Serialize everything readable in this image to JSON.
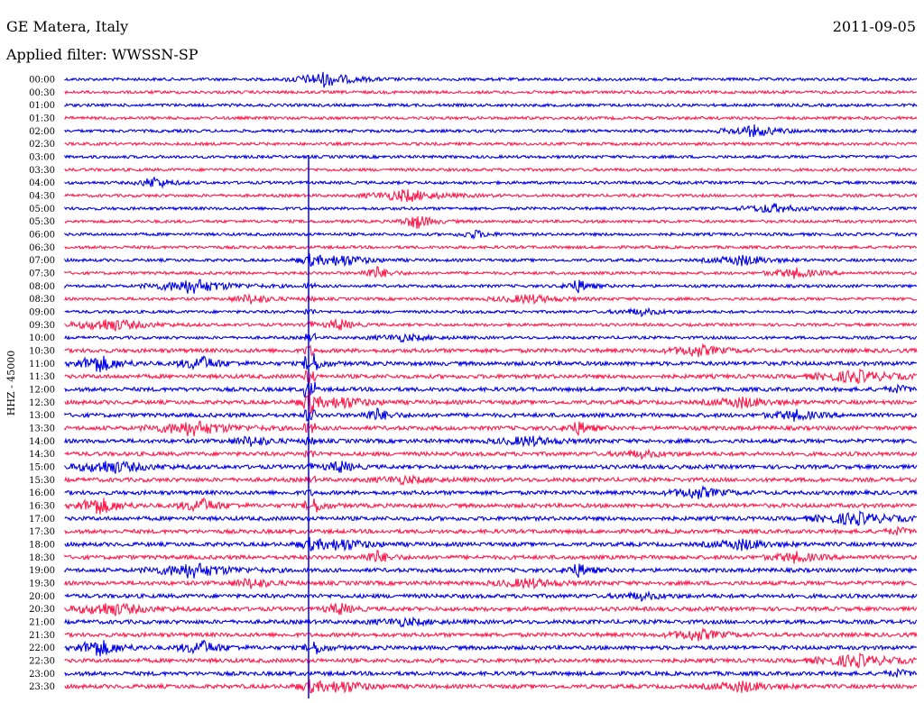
{
  "header": {
    "station": "GE Matera, Italy",
    "date": "2011-09-05",
    "filter_text": "Applied filter: WWSSN-SP"
  },
  "chart_data": {
    "type": "line",
    "title": "",
    "ylabel": "HHZ - 45000",
    "colors": [
      "#0000e6",
      "#ff1a4b"
    ],
    "rows": [
      "00:00",
      "00:30",
      "01:00",
      "01:30",
      "02:00",
      "02:30",
      "03:00",
      "03:30",
      "04:00",
      "04:30",
      "05:00",
      "05:30",
      "06:00",
      "06:30",
      "07:00",
      "07:30",
      "08:00",
      "08:30",
      "09:00",
      "09:30",
      "10:00",
      "10:30",
      "11:00",
      "11:30",
      "12:00",
      "12:30",
      "13:00",
      "13:30",
      "14:00",
      "14:30",
      "15:00",
      "15:30",
      "16:00",
      "16:30",
      "17:00",
      "17:30",
      "18:00",
      "18:30",
      "19:00",
      "19:30",
      "20:00",
      "20:30",
      "21:00",
      "21:30",
      "22:00",
      "22:30",
      "23:00",
      "23:30"
    ]
  }
}
